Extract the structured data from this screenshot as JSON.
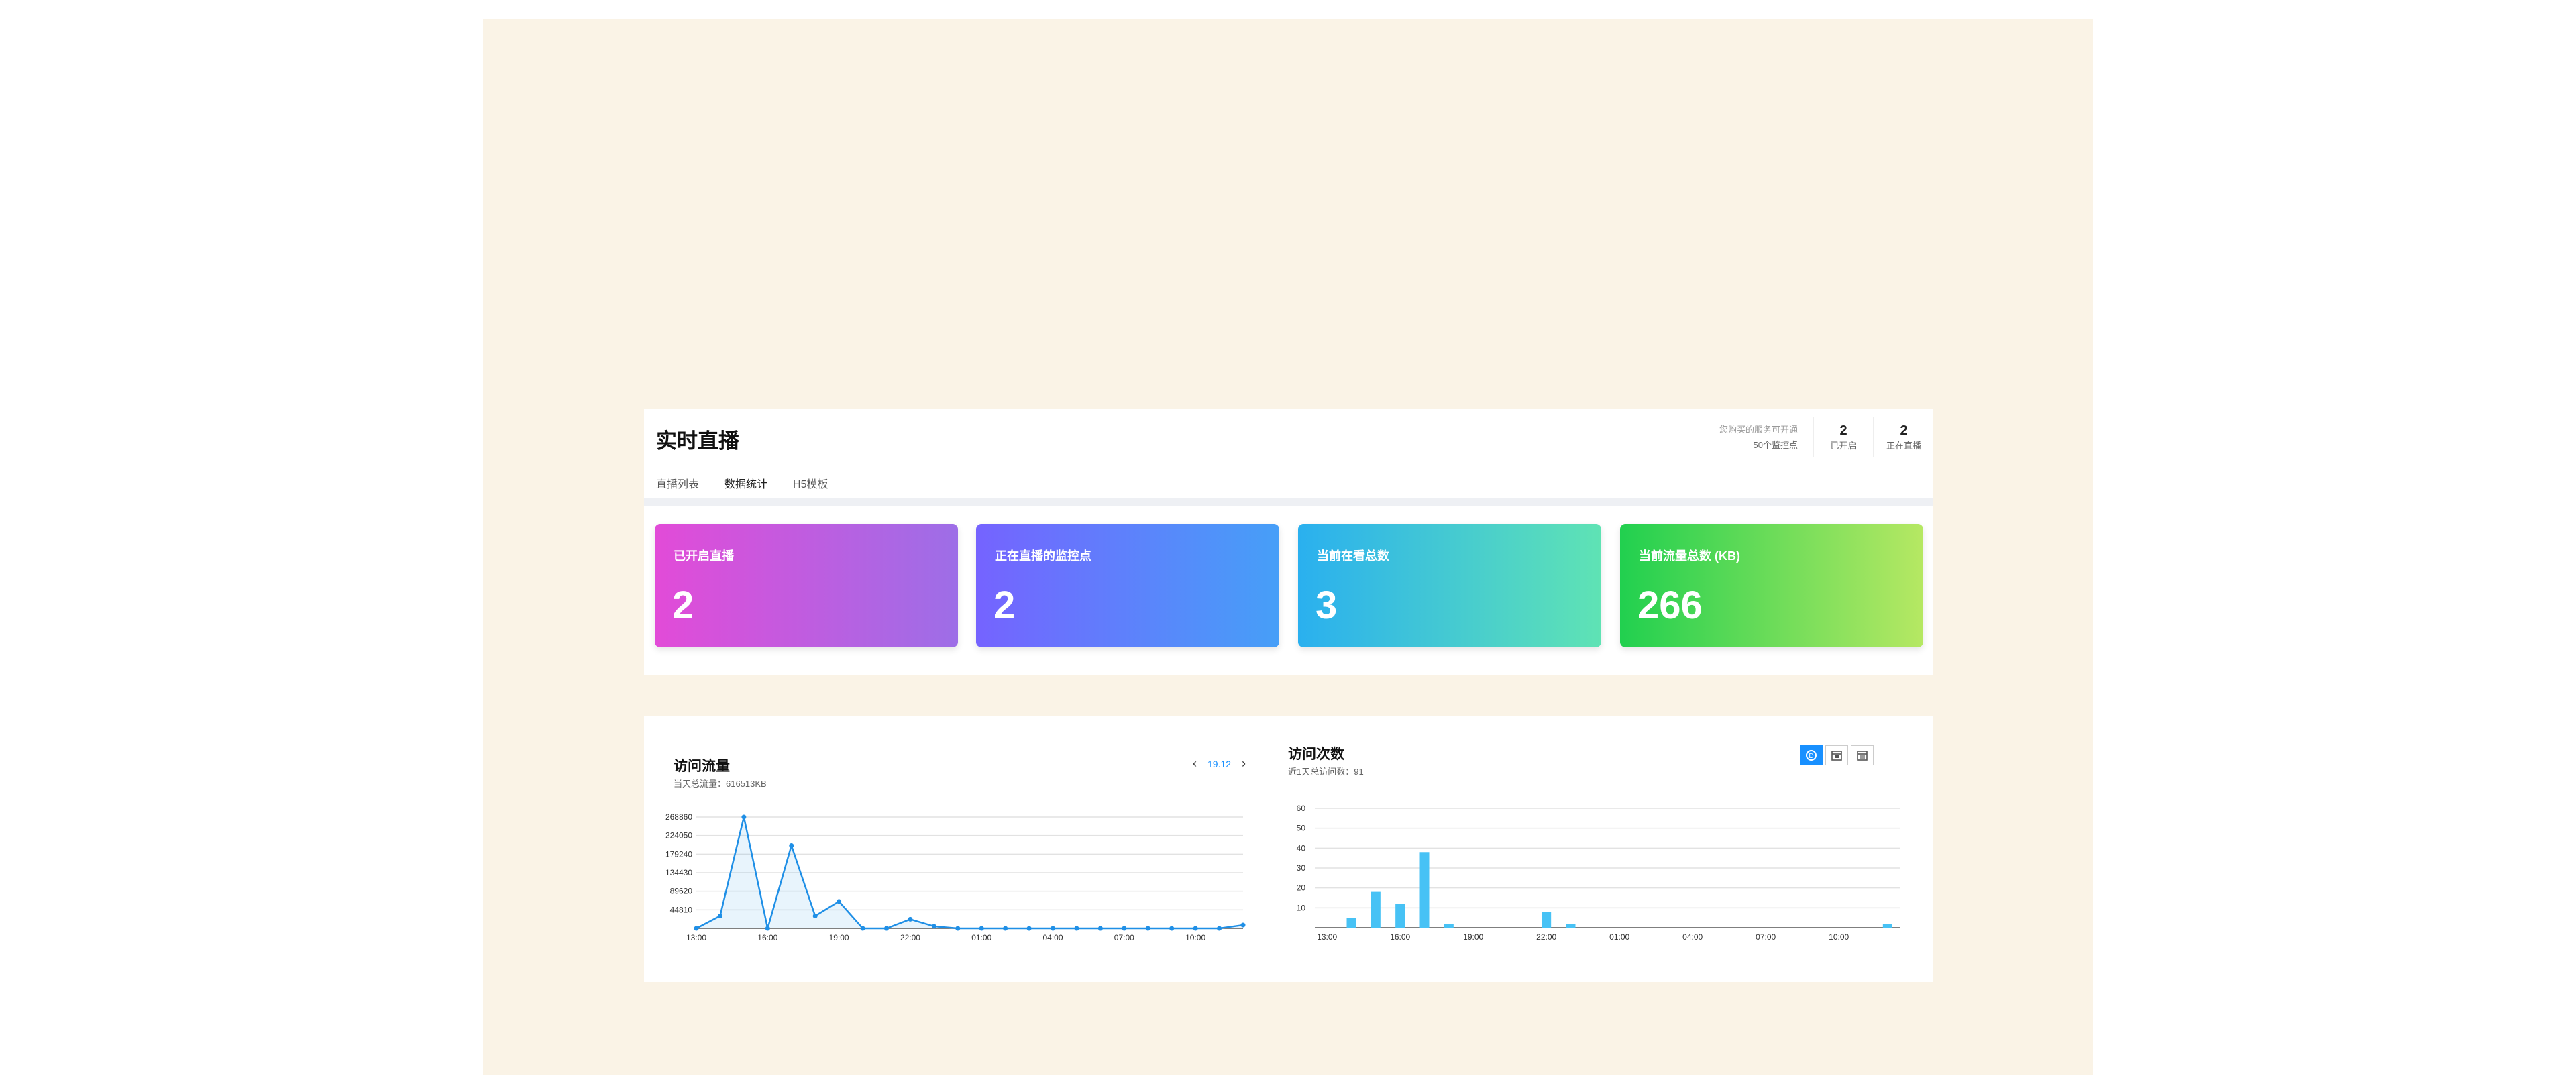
{
  "page": {
    "title": "实时直播",
    "quota_note": "您购买的服务可开通",
    "quota_count": "50个监控点",
    "stats": [
      {
        "value": "2",
        "label": "已开启"
      },
      {
        "value": "2",
        "label": "正在直播"
      }
    ]
  },
  "tabs": [
    {
      "label": "直播列表",
      "active": false
    },
    {
      "label": "数据统计",
      "active": true
    },
    {
      "label": "H5模板",
      "active": false
    }
  ],
  "cards": [
    {
      "label": "已开启直播",
      "value": "2"
    },
    {
      "label": "正在直播的监控点",
      "value": "2"
    },
    {
      "label": "当前在看总数",
      "value": "3"
    },
    {
      "label": "当前流量总数 (KB)",
      "value": "266"
    }
  ],
  "traffic": {
    "title": "访问流量",
    "subtitle": "当天总流量：616513KB",
    "date": "19.12",
    "prev_icon": "chevron-left-icon",
    "next_icon": "chevron-right-icon"
  },
  "visits": {
    "title": "访问次数",
    "subtitle": "近1天总访问数：91",
    "view_buttons": [
      {
        "icon": "day-view-icon",
        "active": true
      },
      {
        "icon": "week-calendar-icon",
        "active": false
      },
      {
        "icon": "month-calendar-icon",
        "active": false
      }
    ]
  },
  "colors": {
    "accent": "#1890ff",
    "line": "#1f8fe6",
    "bar": "#47c2f5",
    "backdrop": "#faf3e6"
  },
  "chart_data": [
    {
      "type": "line",
      "title": "访问流量",
      "x": [
        "13:00",
        "14:00",
        "15:00",
        "16:00",
        "17:00",
        "18:00",
        "19:00",
        "20:00",
        "21:00",
        "22:00",
        "23:00",
        "00:00",
        "01:00",
        "02:00",
        "03:00",
        "04:00",
        "05:00",
        "06:00",
        "07:00",
        "08:00",
        "09:00",
        "10:00",
        "11:00",
        "12:00"
      ],
      "x_tick_labels": [
        "13:00",
        "16:00",
        "19:00",
        "22:00",
        "01:00",
        "04:00",
        "07:00",
        "10:00"
      ],
      "series": [
        {
          "values": [
            0,
            30000,
            268860,
            0,
            200000,
            30000,
            65000,
            0,
            0,
            22000,
            5000,
            0,
            0,
            0,
            0,
            0,
            0,
            0,
            0,
            0,
            0,
            0,
            0,
            8000
          ]
        }
      ],
      "y_ticks": [
        44810,
        89620,
        134430,
        179240,
        224050,
        268860
      ],
      "ylim": [
        0,
        268860
      ],
      "grid": true
    },
    {
      "type": "bar",
      "title": "访问次数",
      "categories": [
        "13:00",
        "14:00",
        "15:00",
        "16:00",
        "17:00",
        "18:00",
        "19:00",
        "20:00",
        "21:00",
        "22:00",
        "23:00",
        "00:00",
        "01:00",
        "02:00",
        "03:00",
        "04:00",
        "05:00",
        "06:00",
        "07:00",
        "08:00",
        "09:00",
        "10:00",
        "11:00",
        "12:00"
      ],
      "x_tick_labels": [
        "13:00",
        "16:00",
        "19:00",
        "22:00",
        "01:00",
        "04:00",
        "07:00",
        "10:00"
      ],
      "values": [
        0,
        5,
        18,
        12,
        38,
        2,
        0,
        0,
        0,
        8,
        2,
        0,
        0,
        0,
        0,
        0,
        0,
        0,
        0,
        0,
        0,
        0,
        0,
        2
      ],
      "y_ticks": [
        10,
        20,
        30,
        40,
        50,
        60
      ],
      "ylim": [
        0,
        60
      ],
      "grid": true
    }
  ]
}
